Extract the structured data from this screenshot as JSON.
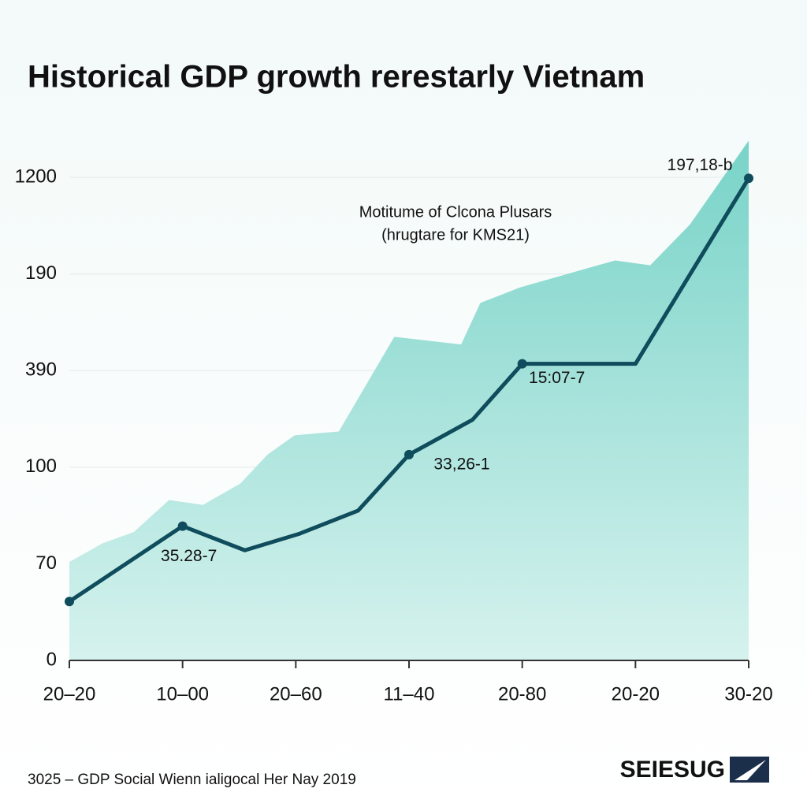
{
  "chart_data": {
    "type": "area-line",
    "title": "Historical GDP growth rerestarly Vietnam",
    "subtitle": [
      "Motitume of Clcona Plusars",
      "(hrugtare for KMS21)"
    ],
    "footer": "3025 – GDP Social Wienn ialigocal Her Nay 2019",
    "brand": "SEIESUG",
    "xlim": [
      0,
      6
    ],
    "xticks": [
      {
        "value": 0,
        "label": "20–20"
      },
      {
        "value": 1,
        "label": "10–00"
      },
      {
        "value": 2,
        "label": "20–60"
      },
      {
        "value": 3,
        "label": "11–40"
      },
      {
        "value": 4,
        "label": "20-80"
      },
      {
        "value": 5,
        "label": "20-20"
      },
      {
        "value": 6,
        "label": "30-20"
      }
    ],
    "ylim": [
      0,
      5.4
    ],
    "yticks": [
      {
        "value": 0,
        "label": "0"
      },
      {
        "value": 1,
        "label": "70"
      },
      {
        "value": 2,
        "label": "100"
      },
      {
        "value": 3,
        "label": "390"
      },
      {
        "value": 4,
        "label": "190"
      },
      {
        "value": 5,
        "label": "1200"
      }
    ],
    "grid": true,
    "series": [
      {
        "kind": "area",
        "color": "#7fd6cc",
        "x": [
          0,
          0.29,
          0.57,
          0.88,
          1.18,
          1.51,
          1.75,
          1.99,
          2.38,
          2.87,
          3.46,
          3.63,
          3.98,
          4.82,
          5.13,
          5.48,
          6
        ],
        "values": [
          1.02,
          1.21,
          1.33,
          1.66,
          1.61,
          1.83,
          2.13,
          2.33,
          2.37,
          3.35,
          3.27,
          3.7,
          3.86,
          4.14,
          4.09,
          4.51,
          5.38
        ]
      },
      {
        "kind": "line",
        "color": "#0f4c5c",
        "x": [
          0,
          1,
          1.55,
          2.03,
          2.55,
          3,
          3.56,
          4,
          5,
          6
        ],
        "values": [
          0.61,
          1.39,
          1.14,
          1.31,
          1.55,
          2.13,
          2.49,
          3.07,
          3.07,
          4.99
        ],
        "markers": [
          0,
          1,
          5,
          7,
          9
        ]
      }
    ],
    "annotations": [
      {
        "point": 1,
        "text": "35.28-7"
      },
      {
        "point": 5,
        "text": "33,26-1"
      },
      {
        "point": 7,
        "text": "15:07-7"
      },
      {
        "point": 9,
        "text": "197,18-b"
      }
    ]
  }
}
